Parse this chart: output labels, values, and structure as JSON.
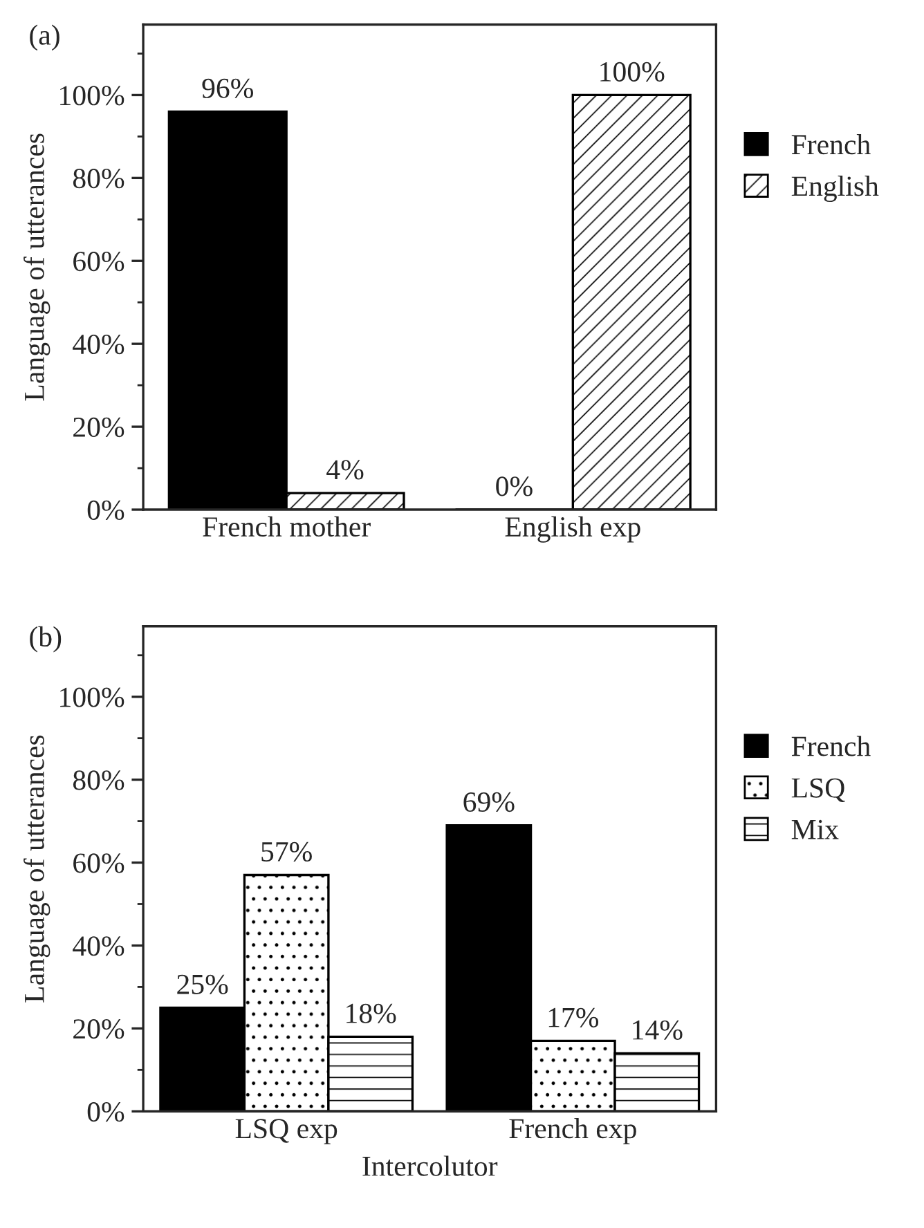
{
  "chart_data": [
    {
      "type": "bar",
      "title": "(a)",
      "ylabel": "Language of utterances",
      "categories": [
        "French mother",
        "English exp"
      ],
      "series": [
        {
          "name": "French",
          "color": "#000000",
          "values": [
            96,
            0
          ],
          "value_labels": [
            "96%",
            "0%"
          ]
        },
        {
          "name": "English",
          "color": "#000000",
          "values": [
            4,
            100
          ],
          "value_labels": [
            "4%",
            "100%"
          ]
        }
      ],
      "ylim": [
        0,
        117
      ],
      "yticks": [
        {
          "value": 0,
          "label": "0%"
        },
        {
          "value": 10,
          "label": null
        },
        {
          "value": 20,
          "label": "20%"
        },
        {
          "value": 30,
          "label": null
        },
        {
          "value": 40,
          "label": "40%"
        },
        {
          "value": 50,
          "label": null
        },
        {
          "value": 60,
          "label": "60%"
        },
        {
          "value": 70,
          "label": null
        },
        {
          "value": 80,
          "label": "80%"
        },
        {
          "value": 90,
          "label": null
        },
        {
          "value": 100,
          "label": "100%"
        },
        {
          "value": 110,
          "label": null
        }
      ],
      "grid": false,
      "legend": "right"
    },
    {
      "type": "bar",
      "title": "(b)",
      "xlabel": "Intercolutor",
      "ylabel": "Language of utterances",
      "categories": [
        "LSQ exp",
        "French exp"
      ],
      "series": [
        {
          "name": "French",
          "color": "#000000",
          "values": [
            25,
            69
          ],
          "value_labels": [
            "25%",
            "69%"
          ]
        },
        {
          "name": "LSQ",
          "color": "#000000",
          "values": [
            57,
            17
          ],
          "value_labels": [
            "57%",
            "17%"
          ]
        },
        {
          "name": "Mix",
          "color": "#000000",
          "values": [
            18,
            14
          ],
          "value_labels": [
            "18%",
            "14%"
          ]
        }
      ],
      "ylim": [
        0,
        117
      ],
      "yticks": [
        {
          "value": 0,
          "label": "0%"
        },
        {
          "value": 10,
          "label": null
        },
        {
          "value": 20,
          "label": "20%"
        },
        {
          "value": 30,
          "label": null
        },
        {
          "value": 40,
          "label": "40%"
        },
        {
          "value": 50,
          "label": null
        },
        {
          "value": 60,
          "label": "60%"
        },
        {
          "value": 70,
          "label": null
        },
        {
          "value": 80,
          "label": "80%"
        },
        {
          "value": 90,
          "label": null
        },
        {
          "value": 100,
          "label": "100%"
        },
        {
          "value": 110,
          "label": null
        }
      ],
      "grid": false,
      "legend": "right"
    }
  ]
}
